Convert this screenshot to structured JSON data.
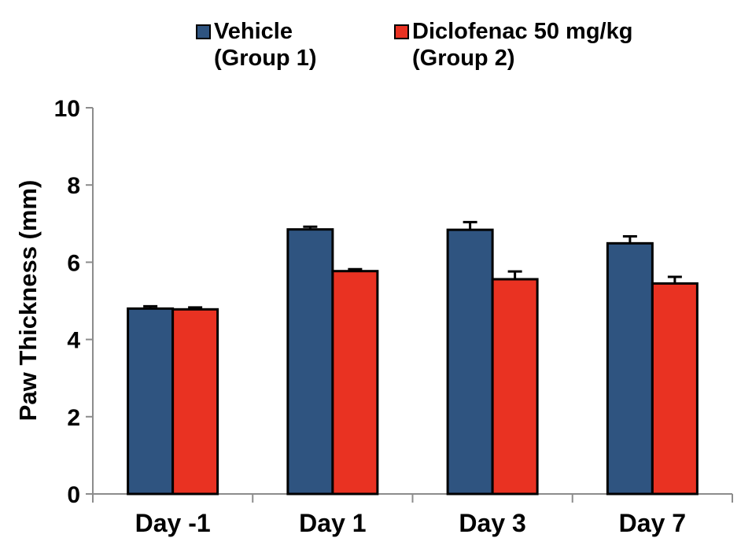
{
  "chart_data": {
    "type": "bar",
    "categories": [
      "Day -1",
      "Day 1",
      "Day 3",
      "Day 7"
    ],
    "series": [
      {
        "name": "Vehicle",
        "name_line2": "(Group 1)",
        "color": "#2F5480",
        "values": [
          4.8,
          6.85,
          6.84,
          6.49
        ],
        "errors": [
          0.06,
          0.07,
          0.2,
          0.18
        ]
      },
      {
        "name": "Diclofenac 50 mg/kg",
        "name_line2": "(Group 2)",
        "color": "#E93222",
        "values": [
          4.78,
          5.77,
          5.56,
          5.45
        ],
        "errors": [
          0.05,
          0.05,
          0.2,
          0.17
        ]
      }
    ],
    "title": "",
    "xlabel": "",
    "ylabel": "Paw Thickness (mm)",
    "yticks": [
      0,
      2,
      4,
      6,
      8,
      10
    ],
    "ylim": [
      0,
      10
    ],
    "grid": false,
    "legend_position": "top",
    "axis_color": "#8C8C8C",
    "bar_border_color": "#000000",
    "error_bar_color": "#000000",
    "text_color": "#000000",
    "background_color": "#FFFFFF"
  }
}
